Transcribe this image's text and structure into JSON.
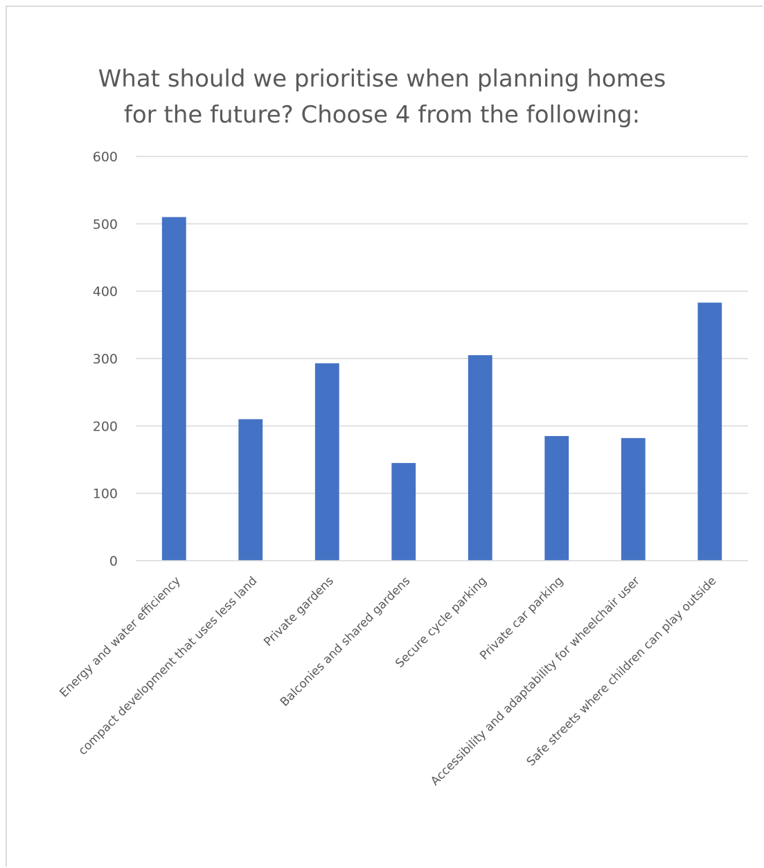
{
  "chart_data": {
    "type": "bar",
    "title": "What should we prioritise when planning homes\nfor the future? Choose 4 from the following:",
    "xlabel": "",
    "ylabel": "",
    "ylim": [
      0,
      600
    ],
    "yticks": [
      0,
      100,
      200,
      300,
      400,
      500,
      600
    ],
    "grid": true,
    "legend": "none",
    "bar_color": "#4472C4",
    "categories": [
      "Energy and water efficiency",
      "compact development that uses less land",
      "Private gardens",
      "Balconies and shared gardens",
      "Secure cycle parking",
      "Private car parking",
      "Accessibility and adaptability for wheelchair user",
      "Safe streets where children can play outside"
    ],
    "values": [
      510,
      210,
      293,
      145,
      305,
      185,
      182,
      383
    ]
  }
}
